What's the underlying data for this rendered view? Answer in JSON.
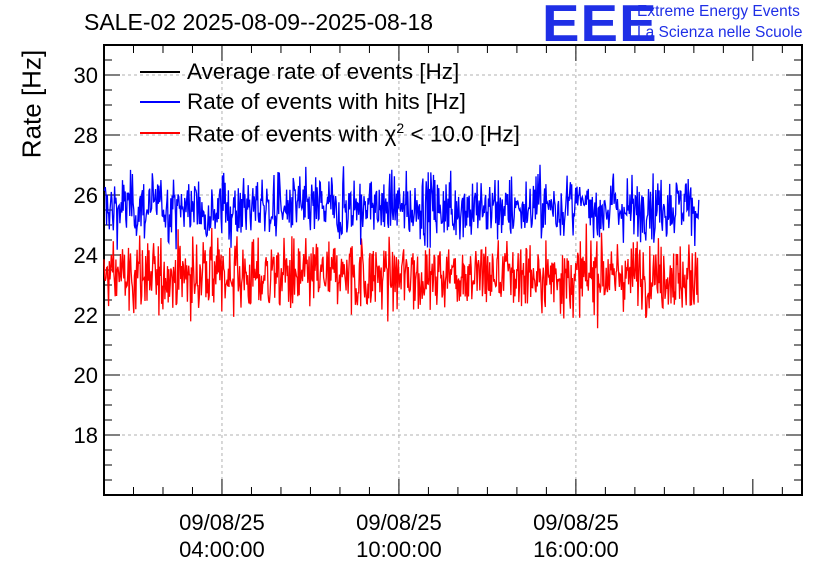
{
  "header": {
    "title": "SALE-02 2025-08-09--2025-08-18",
    "logo_text": "EEE",
    "logo_line1": "Extreme Energy Events",
    "logo_line2": "La Scienza nelle Scuole",
    "logo_color": "#1f2fe6"
  },
  "chart_data": {
    "type": "line",
    "ylabel": "Rate [Hz]",
    "ylim": [
      16.0,
      31.0
    ],
    "xlim": [
      "2025-08-09 00:00:00",
      "2025-08-09 23:40:00"
    ],
    "y_ticks": [
      18,
      20,
      22,
      24,
      26,
      28,
      30
    ],
    "x_ticks": [
      {
        "date": "09/08/25",
        "time": "04:00:00",
        "value": "2025-08-09 04:00:00"
      },
      {
        "date": "09/08/25",
        "time": "10:00:00",
        "value": "2025-08-09 10:00:00"
      },
      {
        "date": "09/08/25",
        "time": "16:00:00",
        "value": "2025-08-09 16:00:00"
      }
    ],
    "data_range": [
      "2025-08-09 00:00:00",
      "2025-08-09 20:10:00"
    ],
    "grid": true,
    "legend_position": "top-left",
    "series": [
      {
        "name": "Average rate of events [Hz]",
        "color": "#000000",
        "mean": 25.6,
        "noise": 0.55
      },
      {
        "name": "Rate of events with hits [Hz]",
        "color": "#0000ff",
        "mean": 25.6,
        "noise": 0.55
      },
      {
        "name": "Rate of events with χ² < 10.0 [Hz]",
        "name_main": "Rate of events with ",
        "name_chi": "χ",
        "name_sup": "2",
        "name_rest": " < 10.0 [Hz]",
        "color": "#ff0000",
        "mean": 23.3,
        "noise": 0.6
      }
    ]
  }
}
